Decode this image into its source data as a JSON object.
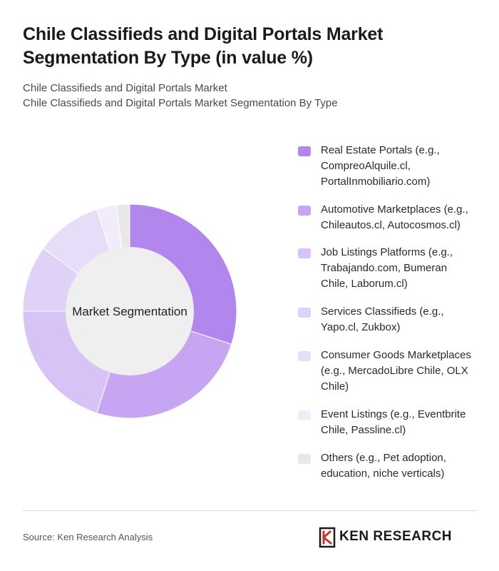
{
  "header": {
    "title_line1": "Chile Classifieds and Digital Portals Market",
    "title_line2": "Segmentation By Type (in value %)",
    "subtitle_line1": "Chile Classifieds and Digital Portals Market",
    "subtitle_line2": "Chile Classifieds and Digital Portals Market Segmentation By Type"
  },
  "chart_data": {
    "type": "pie",
    "donut": true,
    "center_label": "Market Segmentation",
    "legend_position": "right",
    "categories": [
      "Real Estate Portals (e.g., CompreoAlquile.cl, PortalInmobiliario.com)",
      "Automotive Marketplaces (e.g., Chileautos.cl, Autocosmos.cl)",
      "Job Listings Platforms (e.g., Trabajando.com, Bumeran Chile, Laborum.cl)",
      "Services Classifieds (e.g., Yapo.cl, Zukbox)",
      "Consumer Goods Marketplaces (e.g., MercadoLibre Chile, OLX Chile)",
      "Event Listings (e.g., Eventbrite Chile, Passline.cl)",
      "Others (e.g., Pet adoption, education, niche verticals)"
    ],
    "values": [
      30,
      25,
      20,
      10,
      10,
      3,
      2
    ],
    "colors": [
      "#b187ee",
      "#c6a5f3",
      "#d8c3f6",
      "#e0d2f6",
      "#e7ddf8",
      "#f1ecfa",
      "#e8e8e8"
    ]
  },
  "legend": {
    "items": [
      {
        "line1": "Real Estate Portals (e.g.,",
        "line2": "CompreoAlquile.cl,",
        "line3": "PortalInmobiliario.com)"
      },
      {
        "line1": "Automotive Marketplaces (e.g.,",
        "line2": "Chileautos.cl, Autocosmos.cl)",
        "line3": ""
      },
      {
        "line1": "Job Listings Platforms (e.g.,",
        "line2": "Trabajando.com, Bumeran",
        "line3": "Chile, Laborum.cl)"
      },
      {
        "line1": "Services Classifieds (e.g.,",
        "line2": "Yapo.cl, Zukbox)",
        "line3": ""
      },
      {
        "line1": "Consumer Goods Marketplaces",
        "line2": "(e.g., MercadoLibre Chile, OLX",
        "line3": "Chile)"
      },
      {
        "line1": "Event Listings (e.g., Eventbrite",
        "line2": "Chile, Passline.cl)",
        "line3": ""
      },
      {
        "line1": "Others (e.g., Pet adoption,",
        "line2": "education, niche verticals)",
        "line3": ""
      }
    ]
  },
  "footer": {
    "source": "Source: Ken Research Analysis",
    "brand": "KEN RESEARCH"
  }
}
